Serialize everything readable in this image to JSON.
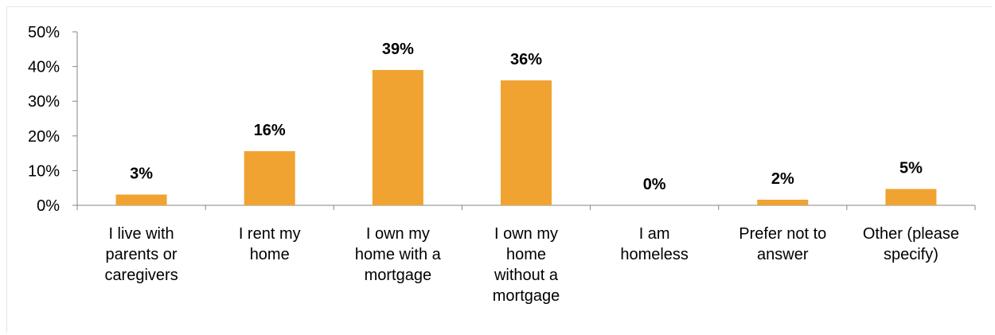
{
  "chart_data": {
    "type": "bar",
    "categories": [
      [
        "I live with",
        "parents or",
        "caregivers"
      ],
      [
        "I rent my",
        "home"
      ],
      [
        "I own my",
        "home with a",
        "mortgage"
      ],
      [
        "I own my",
        "home",
        "without a",
        "mortgage"
      ],
      [
        "I am",
        "homeless"
      ],
      [
        "Prefer not to",
        "answer"
      ],
      [
        "Other (please",
        "specify)"
      ]
    ],
    "values": [
      3.1,
      15.6,
      39.0,
      36.0,
      0.0,
      1.6,
      4.7
    ],
    "data_labels": [
      "3%",
      "16%",
      "39%",
      "36%",
      "0%",
      "2%",
      "5%"
    ],
    "ylim": [
      0,
      50
    ],
    "yticks": [
      0,
      10,
      20,
      30,
      40,
      50
    ],
    "ytick_labels": [
      "0%",
      "10%",
      "20%",
      "30%",
      "40%",
      "50%"
    ],
    "bar_color": "#F0A330",
    "axis_color": "#868686",
    "grid": false,
    "legend": "none"
  }
}
